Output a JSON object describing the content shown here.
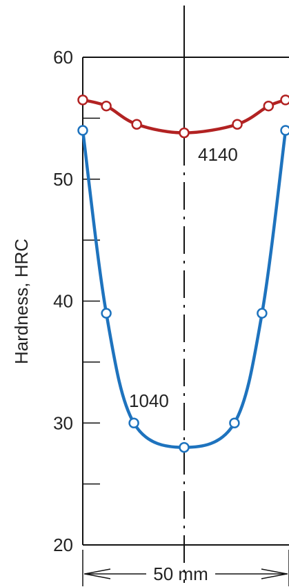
{
  "chart_data": {
    "type": "line",
    "ylabel": "Hardness, HRC",
    "ylim": [
      20,
      60
    ],
    "yticks": [
      "20",
      "30",
      "40",
      "50",
      "60"
    ],
    "xlabel": "50 mm",
    "x_span_mm": 50,
    "xlim": [
      -25,
      25
    ],
    "series": [
      {
        "name": "4140",
        "color": "#b22222",
        "x": [
          -25,
          -19.2,
          -11.7,
          0,
          13.1,
          20.8,
          25
        ],
        "y": [
          56.5,
          56.0,
          54.5,
          53.8,
          54.5,
          56.0,
          56.5
        ]
      },
      {
        "name": "1040",
        "color": "#1e73be",
        "x": [
          -25,
          -19.2,
          -12.4,
          0,
          12.4,
          19.2,
          25
        ],
        "y": [
          54.0,
          39.0,
          30.0,
          28.0,
          30.0,
          39.0,
          54.0
        ]
      }
    ]
  }
}
